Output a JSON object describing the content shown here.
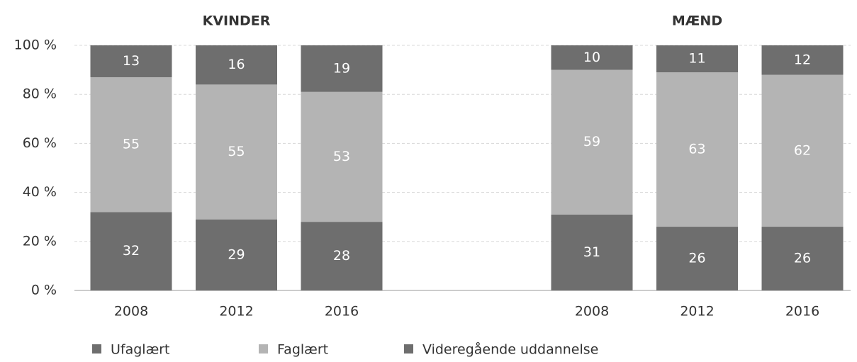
{
  "chart_data": {
    "type": "bar",
    "stacked": true,
    "groups": [
      {
        "title": "KVINDER",
        "categories": [
          "2008",
          "2012",
          "2016"
        ]
      },
      {
        "title": "MÆND",
        "categories": [
          "2008",
          "2012",
          "2016"
        ]
      }
    ],
    "series": [
      {
        "name": "Ufaglært",
        "color": "#6e6e6e",
        "values": [
          [
            32,
            29,
            28
          ],
          [
            31,
            26,
            26
          ]
        ]
      },
      {
        "name": "Faglært",
        "color": "#b4b4b4",
        "values": [
          [
            55,
            55,
            53
          ],
          [
            59,
            63,
            62
          ]
        ]
      },
      {
        "name": "Videregående uddannelse",
        "color": "#6e6e6e",
        "values": [
          [
            13,
            16,
            19
          ],
          [
            10,
            11,
            12
          ]
        ]
      }
    ],
    "ylim": [
      0,
      100
    ],
    "yticks": [
      {
        "value": 0,
        "label": "0 %"
      },
      {
        "value": 20,
        "label": "20 %"
      },
      {
        "value": 40,
        "label": "40 %"
      },
      {
        "value": 60,
        "label": "60 %"
      },
      {
        "value": 80,
        "label": "80 %"
      },
      {
        "value": 100,
        "label": "100 %"
      }
    ],
    "grid": true,
    "legend": "bottom"
  }
}
